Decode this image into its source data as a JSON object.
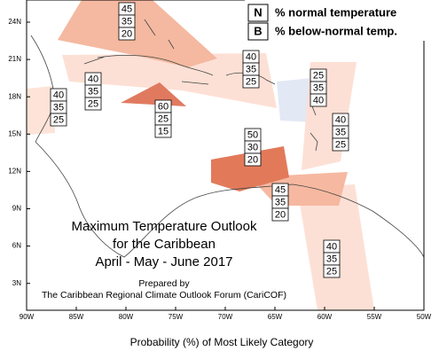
{
  "legend": [
    {
      "symbol": "N",
      "label": "% normal temperature"
    },
    {
      "symbol": "B",
      "label": "% below-normal temp."
    }
  ],
  "title": [
    "Maximum Temperature Outlook",
    "for the Caribbean",
    "April - May - June 2017"
  ],
  "credit": [
    "Prepared by",
    "The Caribbean Regional Climate Outlook Forum (CariCOF)"
  ],
  "caption": "Probability (%) of Most Likely Category",
  "latitude_labels": [
    "24N",
    "21N",
    "18N",
    "15N",
    "12N",
    "9N",
    "6N",
    "3N"
  ],
  "longitude_labels": [
    "90W",
    "85W",
    "80W",
    "75W",
    "70W",
    "65W",
    "60W",
    "55W",
    "50W"
  ],
  "forecasts": [
    [
      45,
      35,
      20
    ],
    [
      40,
      35,
      25
    ],
    [
      25,
      35,
      40
    ],
    [
      40,
      35,
      25
    ],
    [
      40,
      35,
      25
    ],
    [
      60,
      25,
      15
    ],
    [
      40,
      35,
      25
    ],
    [
      50,
      30,
      20
    ],
    [
      45,
      35,
      20
    ],
    [
      40,
      35,
      25
    ]
  ]
}
